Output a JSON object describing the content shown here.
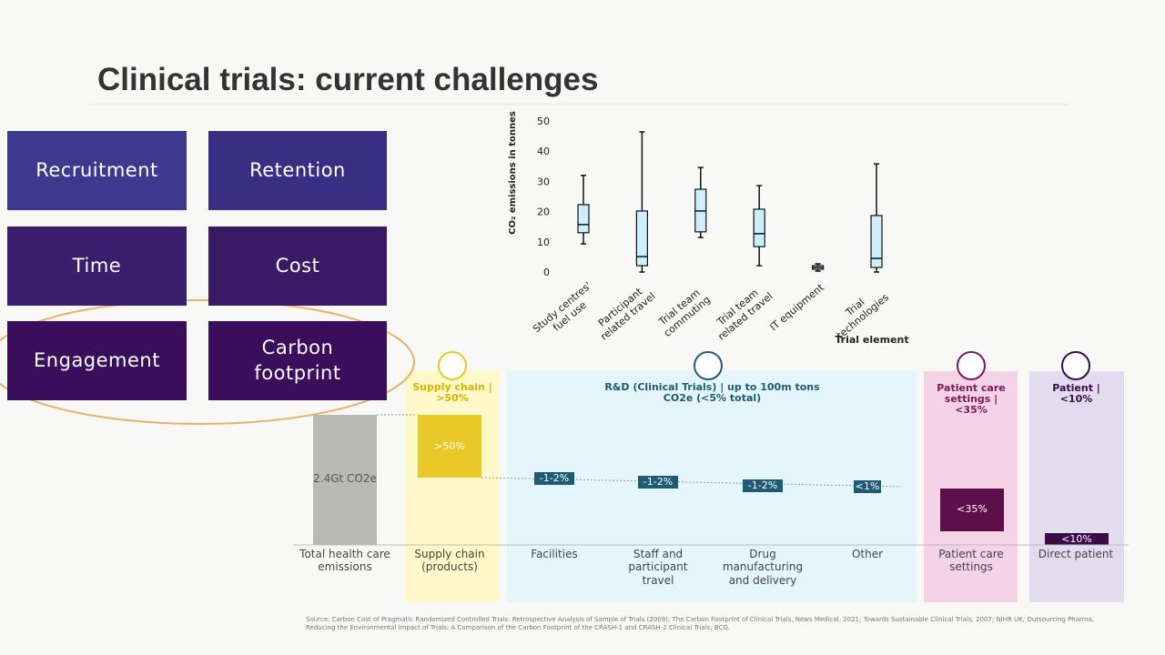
{
  "title": "Clinical trials: current challenges",
  "tiles": [
    "Recruitment",
    "Retention",
    "Time",
    "Cost",
    "Engagement",
    "Carbon footprint"
  ],
  "boxplot": {
    "type": "box",
    "y_label": "CO₂ emissions in tonnes",
    "x_label": "Trial element",
    "categories": [
      "Study centres' fuel use",
      "Participant related travel",
      "Trial team commuting",
      "Trial team related travel",
      "IT equipment",
      "Trial technologies"
    ],
    "ylim": [
      0,
      50
    ],
    "yticks": [
      0,
      10,
      20,
      30,
      40,
      50
    ],
    "boxes": [
      {
        "min": 9.3,
        "q1": 13,
        "median": 15.7,
        "q3": 22.3,
        "max": 32
      },
      {
        "min": 0,
        "q1": 2.1,
        "median": 5.1,
        "q3": 20.2,
        "max": 46.4
      },
      {
        "min": 11.4,
        "q1": 13.3,
        "median": 20.2,
        "q3": 27.4,
        "max": 34.6
      },
      {
        "min": 2.1,
        "q1": 8.4,
        "median": 12.7,
        "q3": 20.8,
        "max": 28.6
      },
      {
        "min": 0.3,
        "q1": 0.9,
        "median": 1.5,
        "q3": 2.1,
        "max": 2.7
      },
      {
        "min": 0,
        "q1": 1.5,
        "median": 4.5,
        "q3": 18.7,
        "max": 35.8
      }
    ],
    "color": "#cdeefb"
  },
  "waterfall": {
    "section_labels": [
      "Supply chain | >50%",
      "R&D (Clinical Trials) | up to 100m tons CO2e (<5% total)",
      "Patient care settings | <35%",
      "Patient | <10%"
    ],
    "bar_labels": [
      "2.4Gt CO2e",
      ">50%",
      "-1-2%",
      "-1-2%",
      "-1-2%",
      "<1%",
      "<35%",
      "<10%"
    ],
    "categories": [
      "Total health care emissions",
      "Supply chain (products)",
      "Facilities",
      "Staff and participant travel",
      "Drug manufacturing and delivery",
      "Other",
      "Patient care settings",
      "Direct patient"
    ]
  },
  "source": "Source: Carbon Cost of Pragmatic Randomized Controlled Trials: Retrospective Analysis of Sample of Trials (2009); The Carbon Footprint of Clinical Trials, News Medical, 2021; Towards Sustainable Clinical Trials, 2007; NIHR UK; Outsourcing Pharma, Reducing the Environmental Impact of Trials: A Comparison of the Carbon Footprint of the CRASH-1 and CRASH-2 Clinical Trials; BCG."
}
